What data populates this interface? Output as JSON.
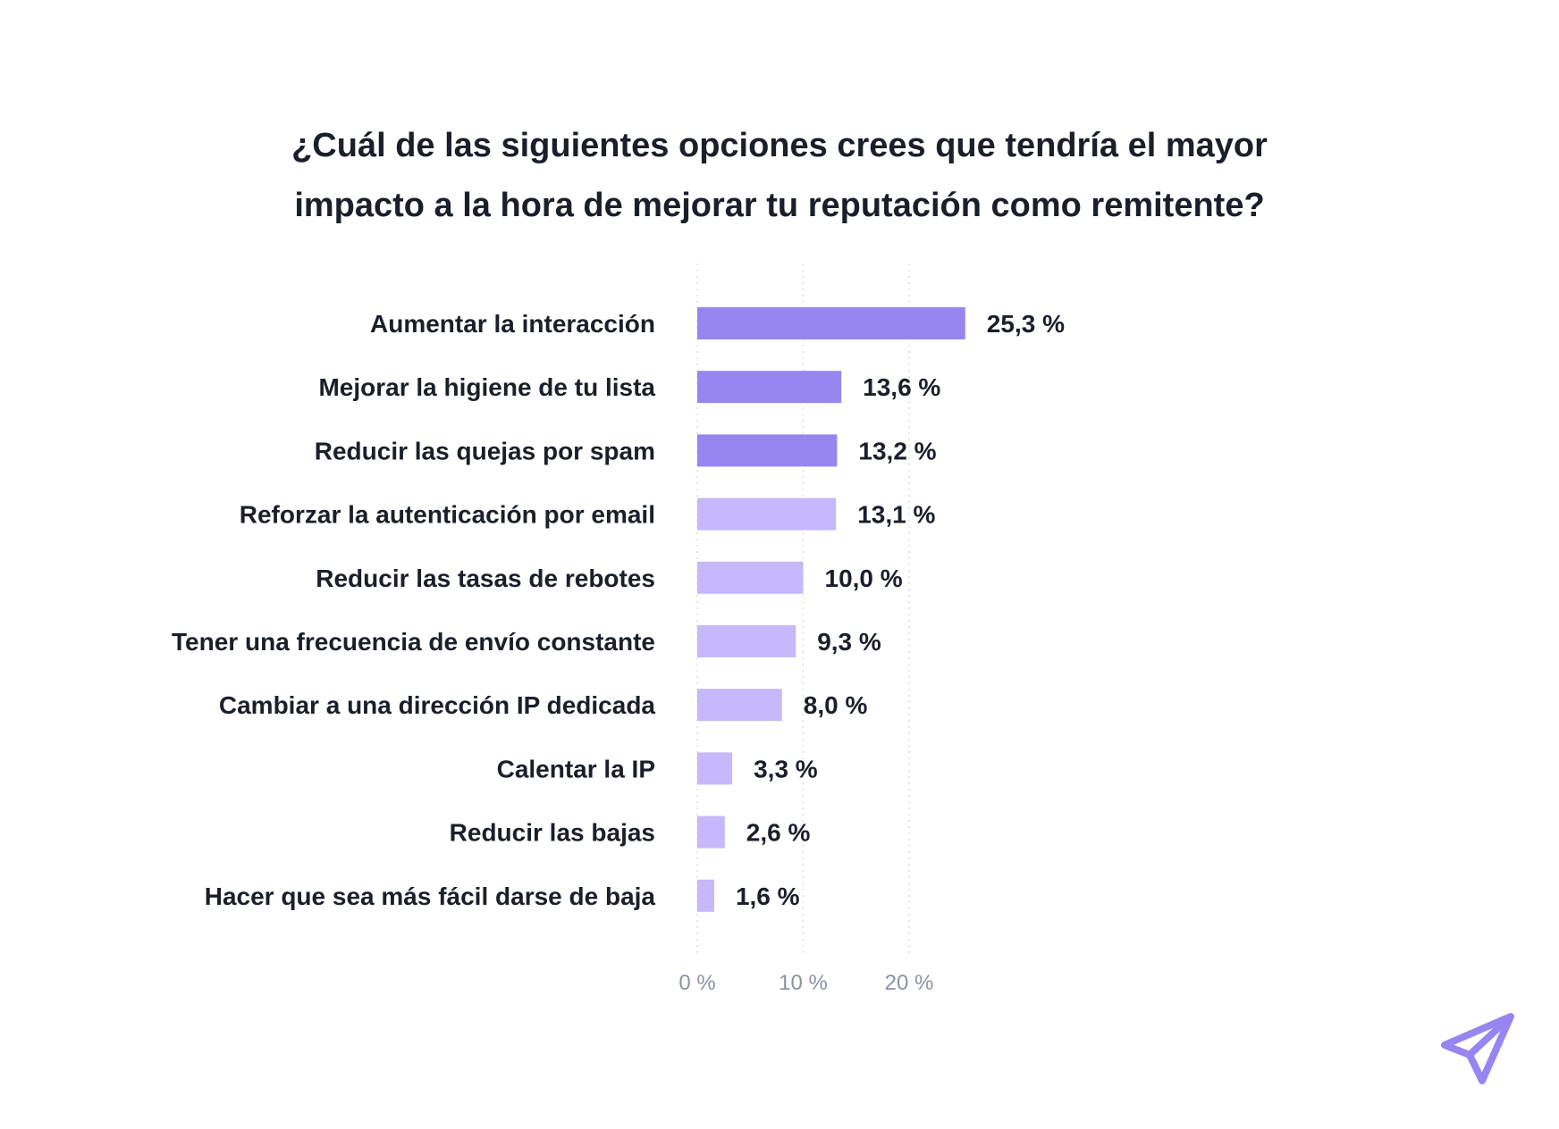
{
  "chart_data": {
    "type": "bar",
    "orientation": "horizontal",
    "title_lines": [
      "¿Cuál de las siguientes opciones crees que tendría el mayor",
      "impacto a la hora de mejorar tu reputación como remitente?"
    ],
    "categories": [
      "Aumentar la interacción",
      "Mejorar la higiene de tu lista",
      "Reducir las quejas por spam",
      "Reforzar la autenticación por email",
      "Reducir las tasas de rebotes",
      "Tener una frecuencia de envío constante",
      "Cambiar a una dirección IP dedicada",
      "Calentar la IP",
      "Reducir las bajas",
      "Hacer que sea más fácil darse de baja"
    ],
    "values": [
      25.3,
      13.6,
      13.2,
      13.1,
      10.0,
      9.3,
      8.0,
      3.3,
      2.6,
      1.6
    ],
    "value_labels": [
      "25,3 %",
      "13,6 %",
      "13,2 %",
      "13,1 %",
      "10,0 %",
      "9,3 %",
      "8,0 %",
      "3,3 %",
      "2,6 %",
      "1,6 %"
    ],
    "highlight_count": 3,
    "xticks": [
      0,
      10,
      20
    ],
    "xtick_labels": [
      "0 %",
      "10 %",
      "20 %"
    ],
    "xlim": [
      0,
      25.3
    ],
    "grid": true,
    "colors": {
      "highlight": "#9785f2",
      "normal": "#c6b8fa",
      "text": "#1b1f2a",
      "tick": "#8a92a6",
      "grid": "#dcdfe6",
      "logo": "#9785f2"
    }
  }
}
